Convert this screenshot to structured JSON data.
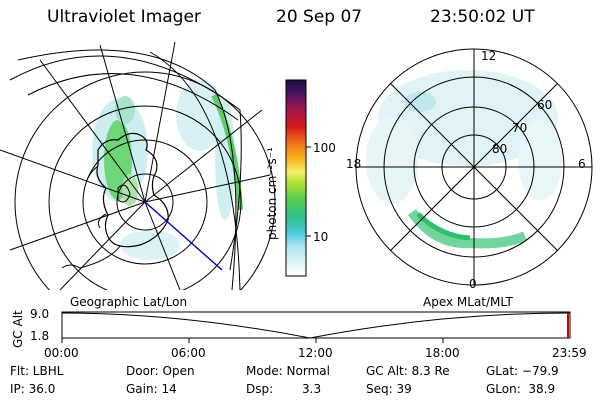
{
  "header": {
    "title": "Ultraviolet Imager",
    "date": "20 Sep 07",
    "time": "23:50:02 UT"
  },
  "colorbar": {
    "unit_label": "photon cm⁻²s⁻¹",
    "ticks": [
      "100",
      "10"
    ]
  },
  "polar_plot": {
    "clock_labels": [
      "12",
      "18",
      "6",
      "0"
    ],
    "lat_labels": [
      "60",
      "70",
      "80"
    ]
  },
  "panel_labels": {
    "left": "Geographic Lat/Lon",
    "right": "Apex MLat/MLT"
  },
  "altitude_plot": {
    "ylabel": "GC Alt",
    "ytick_labels": [
      "9.0",
      "1.8"
    ],
    "x_labels": [
      "00:00",
      "06:00",
      "12:00",
      "18:00",
      "23:59"
    ]
  },
  "info": {
    "flt": "Flt: LBHL",
    "ip": "IP: 36.0",
    "door": "Door: Open",
    "gain": "Gain: 14",
    "mode": "Mode: Normal",
    "dsp_label": "Dsp:",
    "dsp_value": "3.3",
    "gcalt": "GC Alt: 8.3 Re",
    "seq": "Seq: 39",
    "glat": "GLat: −79.9",
    "glon": "GLon:  38.9"
  },
  "colors": {
    "accent_marker": "#cc0000",
    "geo_trace": "#0000c0"
  }
}
